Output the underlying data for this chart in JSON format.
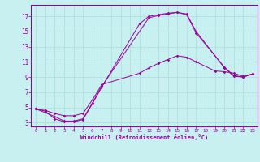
{
  "xlabel": "Windchill (Refroidissement éolien,°C)",
  "background_color": "#c8f0f0",
  "line_color": "#990099",
  "grid_color": "#aadddd",
  "xlim": [
    -0.5,
    23.5
  ],
  "ylim": [
    2.5,
    18.5
  ],
  "xticks": [
    0,
    1,
    2,
    3,
    4,
    5,
    6,
    7,
    8,
    9,
    10,
    11,
    12,
    13,
    14,
    15,
    16,
    17,
    18,
    19,
    20,
    21,
    22,
    23
  ],
  "yticks": [
    3,
    5,
    7,
    9,
    11,
    13,
    15,
    17
  ],
  "line1_x": [
    0,
    1,
    2,
    3,
    4,
    5,
    6,
    7,
    11,
    12,
    13,
    14,
    15,
    16,
    17,
    20,
    21,
    22,
    23
  ],
  "line1_y": [
    4.8,
    4.5,
    3.5,
    3.1,
    3.1,
    3.4,
    5.5,
    7.7,
    16.0,
    17.0,
    17.2,
    17.4,
    17.5,
    17.2,
    14.8,
    10.3,
    9.2,
    9.0,
    9.4
  ],
  "line2_x": [
    0,
    2,
    3,
    4,
    5,
    6,
    7,
    12,
    13,
    14,
    15,
    16,
    17,
    20,
    21,
    22,
    23
  ],
  "line2_y": [
    4.8,
    3.8,
    3.2,
    3.2,
    3.5,
    5.6,
    7.8,
    16.8,
    17.1,
    17.3,
    17.5,
    17.3,
    15.0,
    10.2,
    9.1,
    9.0,
    9.4
  ],
  "line3_x": [
    0,
    1,
    2,
    3,
    4,
    5,
    6,
    7,
    11,
    12,
    13,
    14,
    15,
    16,
    17,
    19,
    20,
    21,
    22,
    23
  ],
  "line3_y": [
    4.8,
    4.6,
    4.2,
    3.9,
    3.9,
    4.2,
    6.0,
    8.0,
    9.5,
    10.2,
    10.8,
    11.3,
    11.8,
    11.6,
    11.0,
    9.8,
    9.7,
    9.5,
    9.1,
    9.4
  ]
}
